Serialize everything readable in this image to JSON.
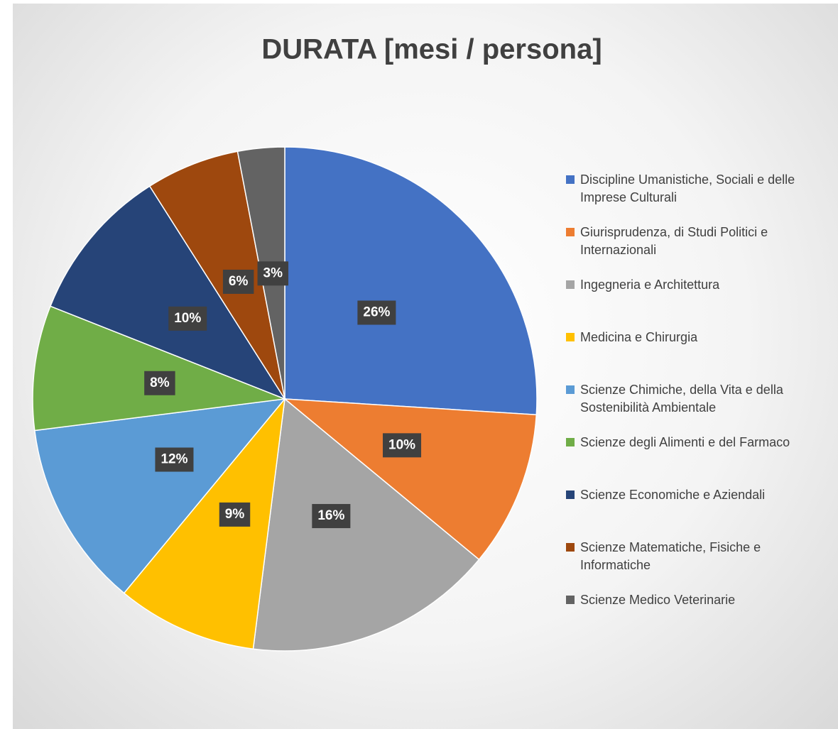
{
  "chart_data": {
    "type": "pie",
    "title": "DURATA [mesi / persona]",
    "categories": [
      "Discipline Umanistiche, Sociali e delle Imprese Culturali",
      "Giurisprudenza, di Studi Politici e Internazionali",
      "Ingegneria e Architettura",
      "Medicina e Chirurgia",
      "Scienze Chimiche, della Vita e della Sostenibilità Ambientale",
      "Scienze degli Alimenti e del Farmaco",
      "Scienze Economiche e Aziendali",
      "Scienze Matematiche, Fisiche e Informatiche",
      "Scienze Medico Veterinarie"
    ],
    "values": [
      26,
      10,
      16,
      9,
      12,
      8,
      10,
      6,
      3
    ],
    "value_labels": [
      "26%",
      "10%",
      "16%",
      "9%",
      "12%",
      "8%",
      "10%",
      "6%",
      "3%"
    ],
    "colors": [
      "#4472c4",
      "#ed7d31",
      "#a5a5a5",
      "#ffc000",
      "#5b9bd5",
      "#70ad47",
      "#264478",
      "#9e480e",
      "#636363"
    ],
    "legend": "right"
  }
}
